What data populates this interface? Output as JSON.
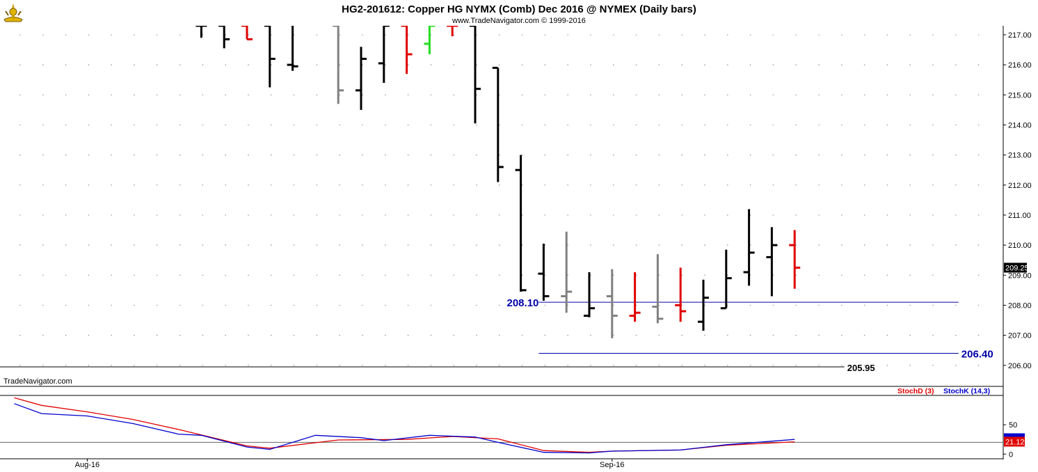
{
  "header": {
    "title": "HG2-201612:  Copper HG NYMX (Comb) Dec 2016 @ NYMEX  (Daily bars)",
    "copyright": "www.TradeNavigator.com © 1999-2016"
  },
  "watermark": "TradeNavigator.com",
  "colors": {
    "up": "#000000",
    "down": "#e00000",
    "neutral": "#808080",
    "highlight": "#22dd22",
    "level_line": "#0000aa",
    "stoch_d": "#e00000",
    "stoch_k": "#0000cc",
    "grid_dot": "#9a9a9a"
  },
  "chart_data": [
    {
      "type": "ohlc",
      "title": "HG2-201612:  Copper HG NYMX (Comb) Dec 2016 @ NYMEX  (Daily bars)",
      "ylim": [
        205.3,
        217.3
      ],
      "yticks": [
        "217.00",
        "216.00",
        "215.00",
        "214.00",
        "213.00",
        "212.00",
        "211.00",
        "210.00",
        "209.00",
        "208.00",
        "207.00",
        "206.00"
      ],
      "ytick_values": [
        217,
        216,
        215,
        214,
        213,
        212,
        211,
        210,
        209,
        208,
        207,
        206
      ],
      "xticks": [
        {
          "label": "Aug-16",
          "bar": 3
        },
        {
          "label": "Sep-16",
          "bar": 26
        }
      ],
      "last_price_label": "209.25",
      "last_price": 209.25,
      "bars": [
        {
          "bar": 8,
          "o": 217.3,
          "h": 217.3,
          "l": 216.9,
          "c": 217.3,
          "color": "up"
        },
        {
          "bar": 9,
          "o": 217.3,
          "h": 217.3,
          "l": 216.55,
          "c": 216.85,
          "color": "up"
        },
        {
          "bar": 10,
          "o": 217.3,
          "h": 217.3,
          "l": 216.85,
          "c": 216.85,
          "color": "down"
        },
        {
          "bar": 11,
          "o": 217.3,
          "h": 217.3,
          "l": 215.25,
          "c": 216.2,
          "color": "up"
        },
        {
          "bar": 12,
          "o": 216.0,
          "h": 217.3,
          "l": 215.8,
          "c": 215.95,
          "color": "up"
        },
        {
          "bar": 14,
          "o": 217.3,
          "h": 217.3,
          "l": 214.7,
          "c": 215.15,
          "color": "neutral"
        },
        {
          "bar": 15,
          "o": 215.15,
          "h": 216.6,
          "l": 214.5,
          "c": 216.2,
          "color": "up"
        },
        {
          "bar": 16,
          "o": 216.05,
          "h": 217.3,
          "l": 215.4,
          "c": 217.3,
          "color": "up"
        },
        {
          "bar": 17,
          "o": 217.3,
          "h": 217.3,
          "l": 215.7,
          "c": 216.35,
          "color": "down"
        },
        {
          "bar": 18,
          "o": 216.7,
          "h": 217.3,
          "l": 216.35,
          "c": 217.3,
          "color": "highlight"
        },
        {
          "bar": 19,
          "o": 217.3,
          "h": 217.3,
          "l": 216.95,
          "c": 217.3,
          "color": "down"
        },
        {
          "bar": 20,
          "o": 217.3,
          "h": 217.3,
          "l": 214.05,
          "c": 215.2,
          "color": "up"
        },
        {
          "bar": 21,
          "o": 215.9,
          "h": 215.9,
          "l": 212.1,
          "c": 212.6,
          "color": "up"
        },
        {
          "bar": 22,
          "o": 212.5,
          "h": 213.0,
          "l": 208.45,
          "c": 208.5,
          "color": "up"
        },
        {
          "bar": 23,
          "o": 209.05,
          "h": 210.05,
          "l": 208.15,
          "c": 208.3,
          "color": "up"
        },
        {
          "bar": 24,
          "o": 208.3,
          "h": 210.45,
          "l": 207.75,
          "c": 208.45,
          "color": "neutral"
        },
        {
          "bar": 25,
          "o": 207.65,
          "h": 209.1,
          "l": 207.6,
          "c": 207.9,
          "color": "up"
        },
        {
          "bar": 26,
          "o": 208.3,
          "h": 209.2,
          "l": 206.9,
          "c": 207.65,
          "color": "neutral"
        },
        {
          "bar": 27,
          "o": 207.65,
          "h": 209.1,
          "l": 207.45,
          "c": 207.75,
          "color": "down"
        },
        {
          "bar": 28,
          "o": 207.95,
          "h": 209.7,
          "l": 207.4,
          "c": 207.55,
          "color": "neutral"
        },
        {
          "bar": 29,
          "o": 208.0,
          "h": 209.25,
          "l": 207.45,
          "c": 207.8,
          "color": "down"
        },
        {
          "bar": 30,
          "o": 207.45,
          "h": 208.85,
          "l": 207.15,
          "c": 208.25,
          "color": "up"
        },
        {
          "bar": 31,
          "o": 207.9,
          "h": 209.85,
          "l": 207.9,
          "c": 208.9,
          "color": "up"
        },
        {
          "bar": 32,
          "o": 209.1,
          "h": 211.2,
          "l": 208.65,
          "c": 209.75,
          "color": "up"
        },
        {
          "bar": 33,
          "o": 209.6,
          "h": 210.6,
          "l": 208.3,
          "c": 210.0,
          "color": "up"
        },
        {
          "bar": 34,
          "o": 210.0,
          "h": 210.5,
          "l": 208.55,
          "c": 209.25,
          "color": "down"
        }
      ],
      "levels": [
        {
          "label": "208.10",
          "value": 208.1,
          "from_bar": 23,
          "to_bar": 41,
          "label_side": "left",
          "color": "level_line"
        },
        {
          "label": "206.40",
          "value": 206.4,
          "from_bar": 23,
          "to_bar": 41,
          "label_side": "right",
          "color": "level_line"
        },
        {
          "label": "205.95",
          "value": 205.95,
          "from_bar": -1,
          "to_bar": 36,
          "label_side": "right",
          "color": "up"
        }
      ]
    },
    {
      "type": "line",
      "legend": [
        "StochD (3)",
        "StochK (14,3)"
      ],
      "ylim": [
        -8,
        100
      ],
      "yticks": [
        "50",
        "0"
      ],
      "ytick_values": [
        50,
        0
      ],
      "reference_level": 20,
      "last_value_label": "21.12",
      "last_value": 21.12,
      "series": [
        {
          "name": "StochD (3)",
          "color": "stoch_d",
          "x": [
            -0.2,
            1,
            3,
            5,
            7,
            10,
            11,
            14,
            17,
            19,
            21,
            23,
            25,
            26,
            29,
            31,
            34
          ],
          "values": [
            96,
            83,
            72,
            59,
            42,
            14,
            10,
            24,
            25,
            30,
            26,
            6,
            3,
            5,
            7,
            15,
            21
          ]
        },
        {
          "name": "StochK (14,3)",
          "color": "stoch_k",
          "x": [
            -0.2,
            1,
            3,
            5,
            7,
            8,
            10,
            11,
            13,
            15,
            16,
            18,
            20,
            21,
            23,
            25,
            26,
            29,
            31,
            34
          ],
          "values": [
            86,
            69,
            65,
            52,
            34,
            32,
            12,
            8,
            32,
            28,
            23,
            32,
            29,
            20,
            3,
            2,
            5,
            7,
            16,
            25
          ]
        }
      ]
    }
  ]
}
